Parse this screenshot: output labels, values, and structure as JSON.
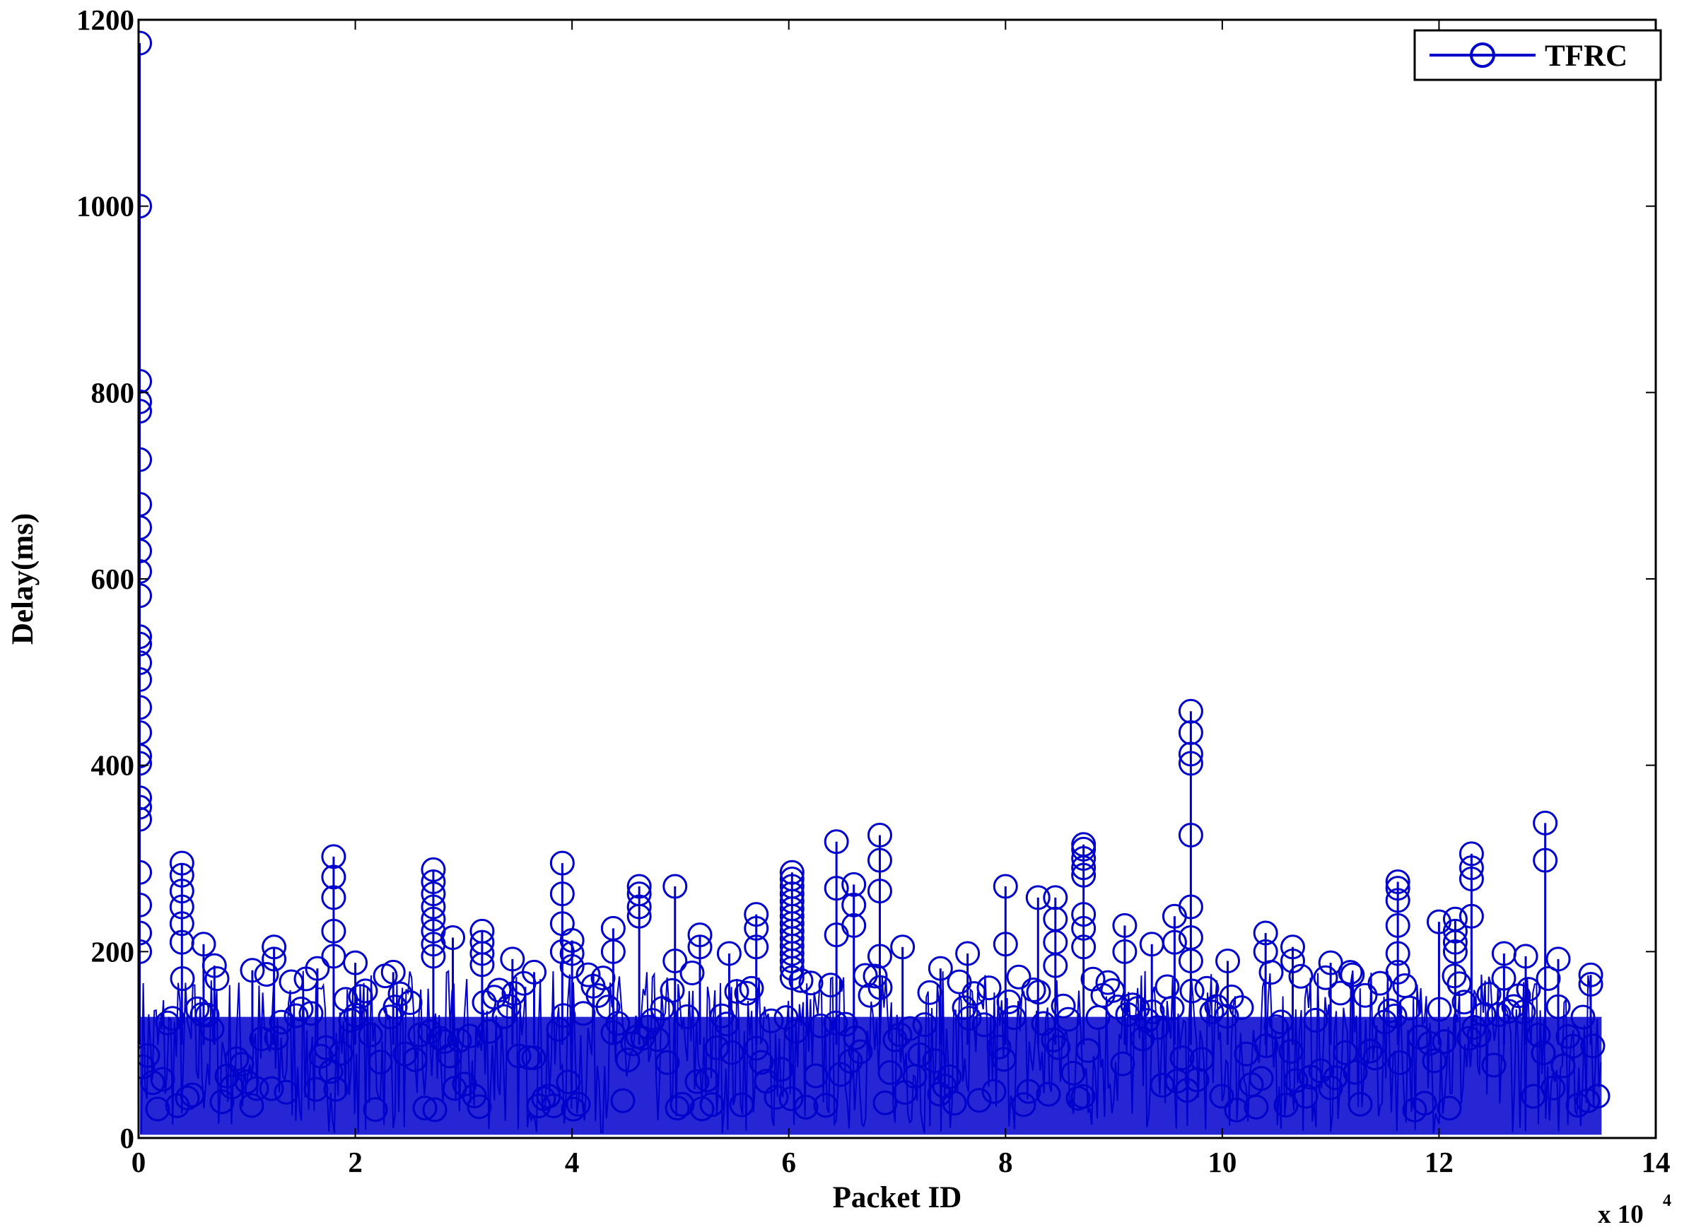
{
  "chart_data": {
    "type": "line",
    "title": "",
    "xlabel": "Packet ID",
    "ylabel": "Delay(ms)",
    "x_multiplier_label": "x 10",
    "x_multiplier_exponent": "4",
    "xlim": [
      0,
      140000
    ],
    "ylim": [
      0,
      1200
    ],
    "xticks": [
      0,
      20000,
      40000,
      60000,
      80000,
      100000,
      120000,
      140000
    ],
    "xtick_labels": [
      "0",
      "2",
      "4",
      "6",
      "8",
      "10",
      "12",
      "14"
    ],
    "yticks": [
      0,
      200,
      400,
      600,
      800,
      1000,
      1200
    ],
    "ytick_labels": [
      "0",
      "200",
      "400",
      "600",
      "800",
      "1000",
      "1200"
    ],
    "grid": false,
    "legend_position": "top-right",
    "marker": "circle",
    "packet_count": 135000,
    "baseline_band_ms": [
      5,
      130
    ],
    "series": [
      {
        "name": "TFRC",
        "color": "#0000cc",
        "spikes": [
          {
            "x": 100,
            "y": [
              1175,
              1000,
              812,
              790,
              780,
              728,
              680,
              655,
              630,
              608,
              582,
              538,
              530,
              510,
              492,
              462,
              435,
              410,
              402,
              365,
              355,
              342,
              285,
              250,
              220,
              200
            ]
          },
          {
            "x": 4000,
            "y": [
              295,
              282,
              265,
              248,
              230,
              210
            ]
          },
          {
            "x": 6000,
            "y": [
              208
            ]
          },
          {
            "x": 7000,
            "y": [
              185
            ]
          },
          {
            "x": 10500,
            "y": [
              180
            ]
          },
          {
            "x": 12500,
            "y": [
              205,
              192
            ]
          },
          {
            "x": 16500,
            "y": [
              182
            ]
          },
          {
            "x": 18000,
            "y": [
              302,
              280,
              258,
              222,
              195
            ]
          },
          {
            "x": 20000,
            "y": [
              188
            ]
          },
          {
            "x": 23500,
            "y": [
              178
            ]
          },
          {
            "x": 27200,
            "y": [
              288,
              275,
              262,
              248,
              235,
              222,
              208,
              195
            ]
          },
          {
            "x": 29000,
            "y": [
              215
            ]
          },
          {
            "x": 31700,
            "y": [
              222,
              210,
              198,
              186
            ]
          },
          {
            "x": 34500,
            "y": [
              192
            ]
          },
          {
            "x": 36500,
            "y": [
              178
            ]
          },
          {
            "x": 39100,
            "y": [
              295,
              262,
              230,
              200
            ]
          },
          {
            "x": 40000,
            "y": [
              212,
              198,
              184
            ]
          },
          {
            "x": 43800,
            "y": [
              225,
              200
            ]
          },
          {
            "x": 46200,
            "y": [
              270,
              262,
              248,
              238
            ]
          },
          {
            "x": 49500,
            "y": [
              270,
              190
            ]
          },
          {
            "x": 51800,
            "y": [
              218,
              205
            ]
          },
          {
            "x": 54500,
            "y": [
              198
            ]
          },
          {
            "x": 57000,
            "y": [
              240,
              225,
              205
            ]
          },
          {
            "x": 60300,
            "y": [
              285,
              278,
              270,
              262,
              254,
              246,
              238,
              230,
              222,
              214,
              206,
              198,
              190,
              182,
              172
            ]
          },
          {
            "x": 64400,
            "y": [
              318,
              268,
              218
            ]
          },
          {
            "x": 66000,
            "y": [
              272,
              250,
              228
            ]
          },
          {
            "x": 68400,
            "y": [
              325,
              298,
              265,
              195
            ]
          },
          {
            "x": 70500,
            "y": [
              205
            ]
          },
          {
            "x": 74000,
            "y": [
              182
            ]
          },
          {
            "x": 76500,
            "y": [
              198
            ]
          },
          {
            "x": 80000,
            "y": [
              270,
              208
            ]
          },
          {
            "x": 83000,
            "y": [
              258
            ]
          },
          {
            "x": 84600,
            "y": [
              258,
              235,
              210,
              185
            ]
          },
          {
            "x": 87200,
            "y": [
              315,
              310,
              300,
              290,
              282,
              240,
              225,
              205
            ]
          },
          {
            "x": 91000,
            "y": [
              228,
              200
            ]
          },
          {
            "x": 93500,
            "y": [
              208
            ]
          },
          {
            "x": 95600,
            "y": [
              238,
              210
            ]
          },
          {
            "x": 97100,
            "y": [
              458,
              435,
              412,
              402,
              325,
              248,
              215,
              190
            ]
          },
          {
            "x": 100500,
            "y": [
              190
            ]
          },
          {
            "x": 104000,
            "y": [
              220,
              200
            ]
          },
          {
            "x": 106500,
            "y": [
              205,
              190
            ]
          },
          {
            "x": 110000,
            "y": [
              188
            ]
          },
          {
            "x": 112000,
            "y": [
              175
            ]
          },
          {
            "x": 116200,
            "y": [
              275,
              268,
              255,
              228,
              198,
              178
            ]
          },
          {
            "x": 120000,
            "y": [
              232
            ]
          },
          {
            "x": 121500,
            "y": [
              235,
              222,
              210,
              200
            ]
          },
          {
            "x": 123000,
            "y": [
              305,
              290,
              278,
              238
            ]
          },
          {
            "x": 126000,
            "y": [
              198
            ]
          },
          {
            "x": 128000,
            "y": [
              195
            ]
          },
          {
            "x": 129800,
            "y": [
              338,
              298
            ]
          },
          {
            "x": 131000,
            "y": [
              192
            ]
          },
          {
            "x": 134000,
            "y": [
              175,
              165
            ]
          }
        ]
      }
    ]
  }
}
